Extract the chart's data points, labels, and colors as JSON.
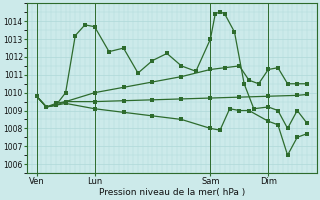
{
  "background_color": "#cceaea",
  "grid_color": "#b8dede",
  "line_color": "#2d6b2d",
  "xlabel": "Pression niveau de la mer( hPa )",
  "ylim_min": 1005.5,
  "ylim_max": 1015.0,
  "yticks": [
    1006,
    1007,
    1008,
    1009,
    1010,
    1011,
    1012,
    1013,
    1014
  ],
  "xtick_labels": [
    "Ven",
    "Lun",
    "Sam",
    "Dim"
  ],
  "xtick_positions": [
    2,
    14,
    38,
    50
  ],
  "vline_positions": [
    2,
    14,
    38,
    50
  ],
  "line1_x": [
    2,
    4,
    6,
    8,
    10,
    12,
    14,
    17,
    20,
    23,
    26,
    29,
    32,
    35,
    38,
    39,
    40,
    41,
    43,
    45,
    47,
    50,
    52,
    54,
    56,
    58
  ],
  "line1_y": [
    1009.8,
    1009.2,
    1009.3,
    1010.0,
    1013.2,
    1013.8,
    1013.7,
    1012.3,
    1012.5,
    1011.1,
    1011.8,
    1012.2,
    1011.5,
    1011.2,
    1013.0,
    1014.4,
    1014.55,
    1014.4,
    1013.4,
    1010.5,
    1009.1,
    1009.2,
    1009.0,
    1008.0,
    1009.0,
    1008.3
  ],
  "line2_x": [
    2,
    4,
    6,
    8,
    14,
    20,
    26,
    32,
    38,
    41,
    44,
    46,
    48,
    50,
    52,
    54,
    56,
    58
  ],
  "line2_y": [
    1009.8,
    1009.2,
    1009.3,
    1009.5,
    1010.0,
    1010.3,
    1010.6,
    1010.9,
    1011.3,
    1011.4,
    1011.5,
    1010.7,
    1010.5,
    1011.3,
    1011.4,
    1010.5,
    1010.5,
    1010.5
  ],
  "line3_x": [
    2,
    4,
    6,
    8,
    14,
    20,
    26,
    32,
    38,
    44,
    50,
    56,
    58
  ],
  "line3_y": [
    1009.8,
    1009.2,
    1009.4,
    1009.5,
    1009.5,
    1009.55,
    1009.6,
    1009.65,
    1009.7,
    1009.75,
    1009.8,
    1009.85,
    1009.9
  ],
  "line4_x": [
    2,
    4,
    6,
    8,
    14,
    20,
    26,
    32,
    38,
    40,
    42,
    44,
    46,
    50,
    52,
    54,
    56,
    58
  ],
  "line4_y": [
    1009.8,
    1009.2,
    1009.3,
    1009.4,
    1009.1,
    1008.9,
    1008.7,
    1008.5,
    1008.0,
    1007.9,
    1009.1,
    1009.0,
    1009.0,
    1008.4,
    1008.2,
    1006.5,
    1007.5,
    1007.7
  ],
  "xlim_min": 0,
  "xlim_max": 60
}
